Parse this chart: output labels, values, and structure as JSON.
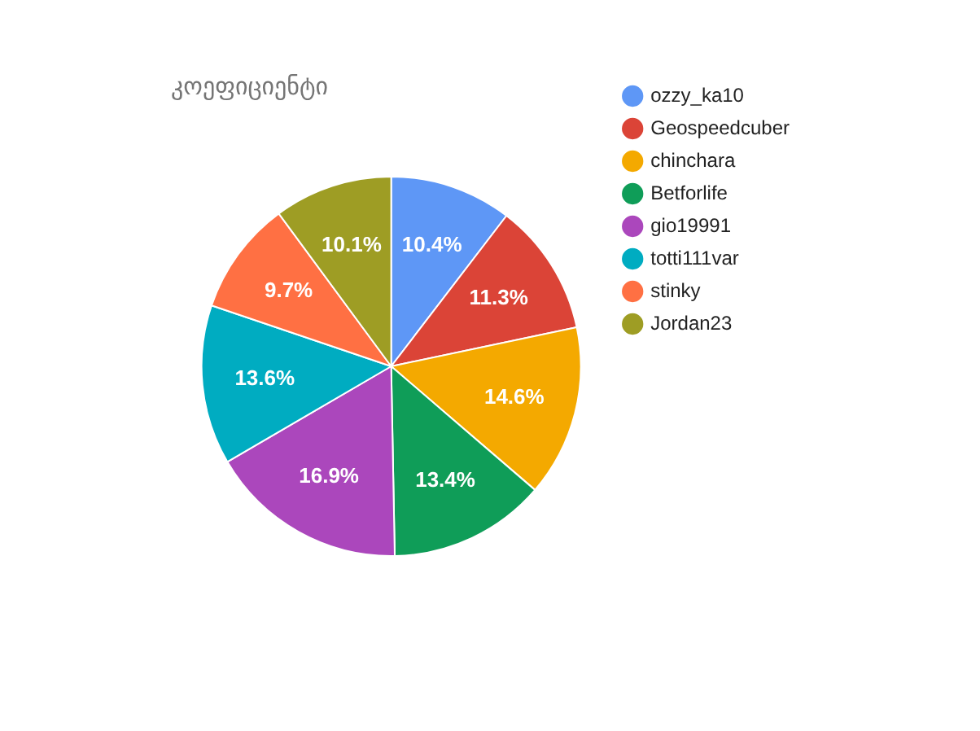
{
  "chart_data": {
    "type": "pie",
    "title": "კოეფიციენტი",
    "categories": [
      "ozzy_ka10",
      "Geospeedcuber",
      "chinchara",
      "Betforlife",
      "gio19991",
      "totti111var",
      "stinky",
      "Jordan23"
    ],
    "values": [
      10.4,
      11.3,
      14.6,
      13.4,
      16.9,
      13.6,
      9.7,
      10.1
    ],
    "value_labels": [
      "10.4%",
      "11.3%",
      "14.6%",
      "13.4%",
      "16.9%",
      "13.6%",
      "9.7%",
      "10.1%"
    ],
    "colors": [
      "#5e97f6",
      "#db4437",
      "#f4a900",
      "#0f9d58",
      "#ab47bc",
      "#00acc1",
      "#ff7043",
      "#9e9d24"
    ],
    "legend": "right"
  }
}
